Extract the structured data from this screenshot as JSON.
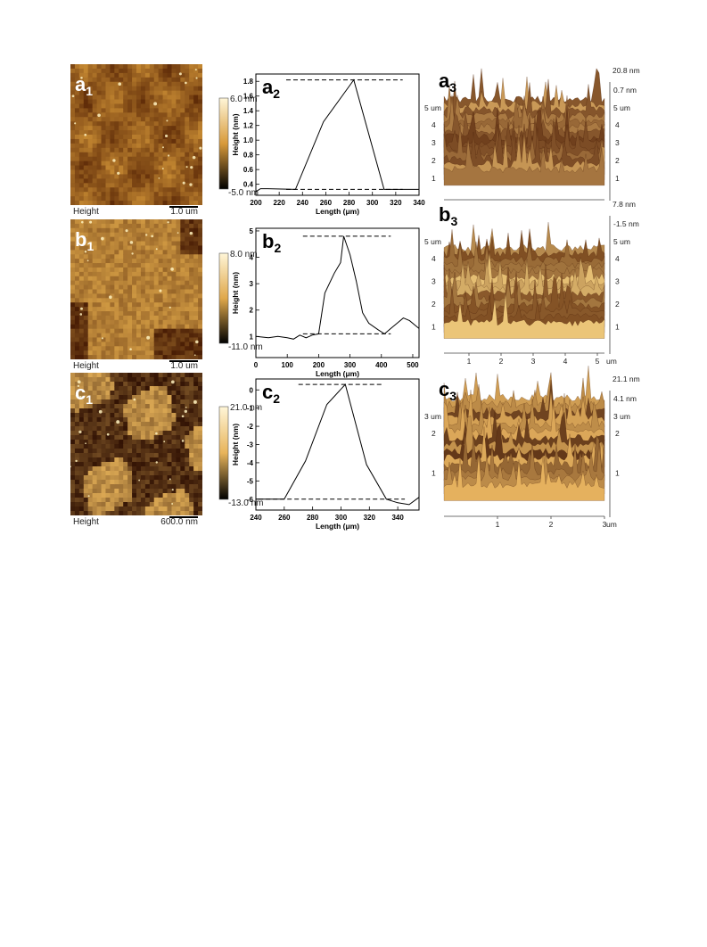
{
  "afm_panels": [
    {
      "id": "a",
      "label": "a",
      "sub": "1",
      "footer_label": "Height",
      "scale_bar": "1.0 um",
      "cbar_max": "6.0 nm",
      "cbar_min": "-5.0 nm",
      "colors": {
        "dark": "#5a2706",
        "light": "#d89a3a"
      }
    },
    {
      "id": "b",
      "label": "b",
      "sub": "1",
      "footer_label": "Height",
      "scale_bar": "1.0 um",
      "cbar_max": "8.0 nm",
      "cbar_min": "-11.0 nm",
      "colors": {
        "dark": "#4a1e05",
        "light": "#e0a84a"
      }
    },
    {
      "id": "c",
      "label": "c",
      "sub": "1",
      "footer_label": "Height",
      "scale_bar": "600.0 nm",
      "cbar_max": "21.0 nm",
      "cbar_min": "-13.0 nm",
      "colors": {
        "dark": "#2e0f02",
        "light": "#e8b45a"
      }
    }
  ],
  "chart_data": [
    {
      "type": "line",
      "panel": "a",
      "label": "a",
      "sub": "2",
      "xlabel": "Length (μm)",
      "ylabel": "Height (nm)",
      "xlim": [
        200,
        340
      ],
      "ylim": [
        0.25,
        1.9
      ],
      "xticks": [
        "200",
        "220",
        "240",
        "260",
        "280",
        "300",
        "320",
        "340"
      ],
      "yticks": [
        "0.4",
        "0.6",
        "0.8",
        "1.0",
        "1.2",
        "1.4",
        "1.6",
        "1.8"
      ],
      "series": [
        {
          "x": [
            200,
            204,
            210,
            234,
            258,
            284,
            310,
            340
          ],
          "y": [
            0.3,
            0.34,
            0.34,
            0.33,
            1.25,
            1.82,
            0.33,
            0.33
          ]
        }
      ],
      "guides": [
        {
          "x": [
            226,
            326
          ],
          "y": 1.82
        },
        {
          "x": [
            226,
            326
          ],
          "y": 0.33
        }
      ]
    },
    {
      "type": "line",
      "panel": "b",
      "label": "b",
      "sub": "2",
      "xlabel": "Length (μm)",
      "ylabel": "Height (nm)",
      "xlim": [
        0,
        520
      ],
      "ylim": [
        0.2,
        5.1
      ],
      "xticks": [
        "0",
        "100",
        "200",
        "300",
        "400",
        "500"
      ],
      "yticks": [
        "1",
        "2",
        "3",
        "4",
        "5"
      ],
      "series": [
        {
          "x": [
            0,
            40,
            70,
            100,
            120,
            140,
            160,
            180,
            200,
            220,
            250,
            270,
            280,
            300,
            320,
            340,
            360,
            390,
            410,
            430,
            450,
            470,
            490,
            510,
            520
          ],
          "y": [
            1.0,
            0.95,
            1.0,
            0.95,
            0.9,
            1.05,
            0.95,
            1.05,
            1.1,
            2.65,
            3.4,
            3.8,
            4.8,
            4.1,
            3.1,
            1.9,
            1.5,
            1.25,
            1.1,
            1.3,
            1.5,
            1.7,
            1.6,
            1.4,
            1.3
          ]
        }
      ],
      "guides": [
        {
          "x": [
            150,
            430
          ],
          "y": 4.8
        },
        {
          "x": [
            150,
            430
          ],
          "y": 1.1
        }
      ]
    },
    {
      "type": "line",
      "panel": "c",
      "label": "c",
      "sub": "2",
      "xlabel": "Length (μm)",
      "ylabel": "Height (nm)",
      "xlim": [
        240,
        355
      ],
      "ylim": [
        -6.6,
        0.6
      ],
      "xticks": [
        "240",
        "260",
        "280",
        "300",
        "320",
        "340"
      ],
      "yticks": [
        "0",
        "-1",
        "-2",
        "-3",
        "-4",
        "-5",
        "-6"
      ],
      "series": [
        {
          "x": [
            240,
            260,
            275,
            290,
            303,
            318,
            332,
            340,
            348,
            355
          ],
          "y": [
            -6.0,
            -6.0,
            -3.9,
            -0.8,
            0.3,
            -4.1,
            -6.0,
            -6.2,
            -6.3,
            -5.9
          ]
        }
      ],
      "guides": [
        {
          "x": [
            270,
            330
          ],
          "y": 0.3
        },
        {
          "x": [
            242,
            345
          ],
          "y": -6.0
        }
      ]
    }
  ],
  "surface_panels": [
    {
      "id": "a",
      "label": "a",
      "sub": "3",
      "z_max": "20.8 nm",
      "z_mid": "0.7 nm",
      "y_unit_label": "5 um",
      "y_ticks": [
        "4",
        "3",
        "2",
        "1"
      ],
      "x_ticks": [],
      "x_unit_label": "",
      "colors": {
        "dark": "#4a1a05",
        "light": "#f0c070"
      }
    },
    {
      "id": "b",
      "label": "b",
      "sub": "3",
      "z_max": "7.8 nm",
      "z_mid": "-1.5 nm",
      "y_unit_label": "5 um",
      "y_ticks": [
        "4",
        "3",
        "2",
        "1"
      ],
      "x_ticks": [
        "1",
        "2",
        "3",
        "4",
        "5"
      ],
      "x_unit_label": "um",
      "colors": {
        "dark": "#5a2505",
        "light": "#f5d080"
      }
    },
    {
      "id": "c",
      "label": "c",
      "sub": "3",
      "z_max": "21.1 nm",
      "z_mid": "4.1 nm",
      "y_unit_label": "3 um",
      "y_ticks": [
        "2",
        "1"
      ],
      "x_ticks": [
        "1",
        "2",
        "3"
      ],
      "x_unit_label": "um",
      "colors": {
        "dark": "#3a1203",
        "light": "#e8b460"
      }
    }
  ]
}
